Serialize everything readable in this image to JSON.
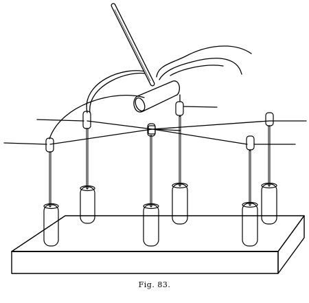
{
  "figure": {
    "caption": "Fig. 83.",
    "ink_color": "#000000",
    "paper_color": "#ffffff"
  }
}
